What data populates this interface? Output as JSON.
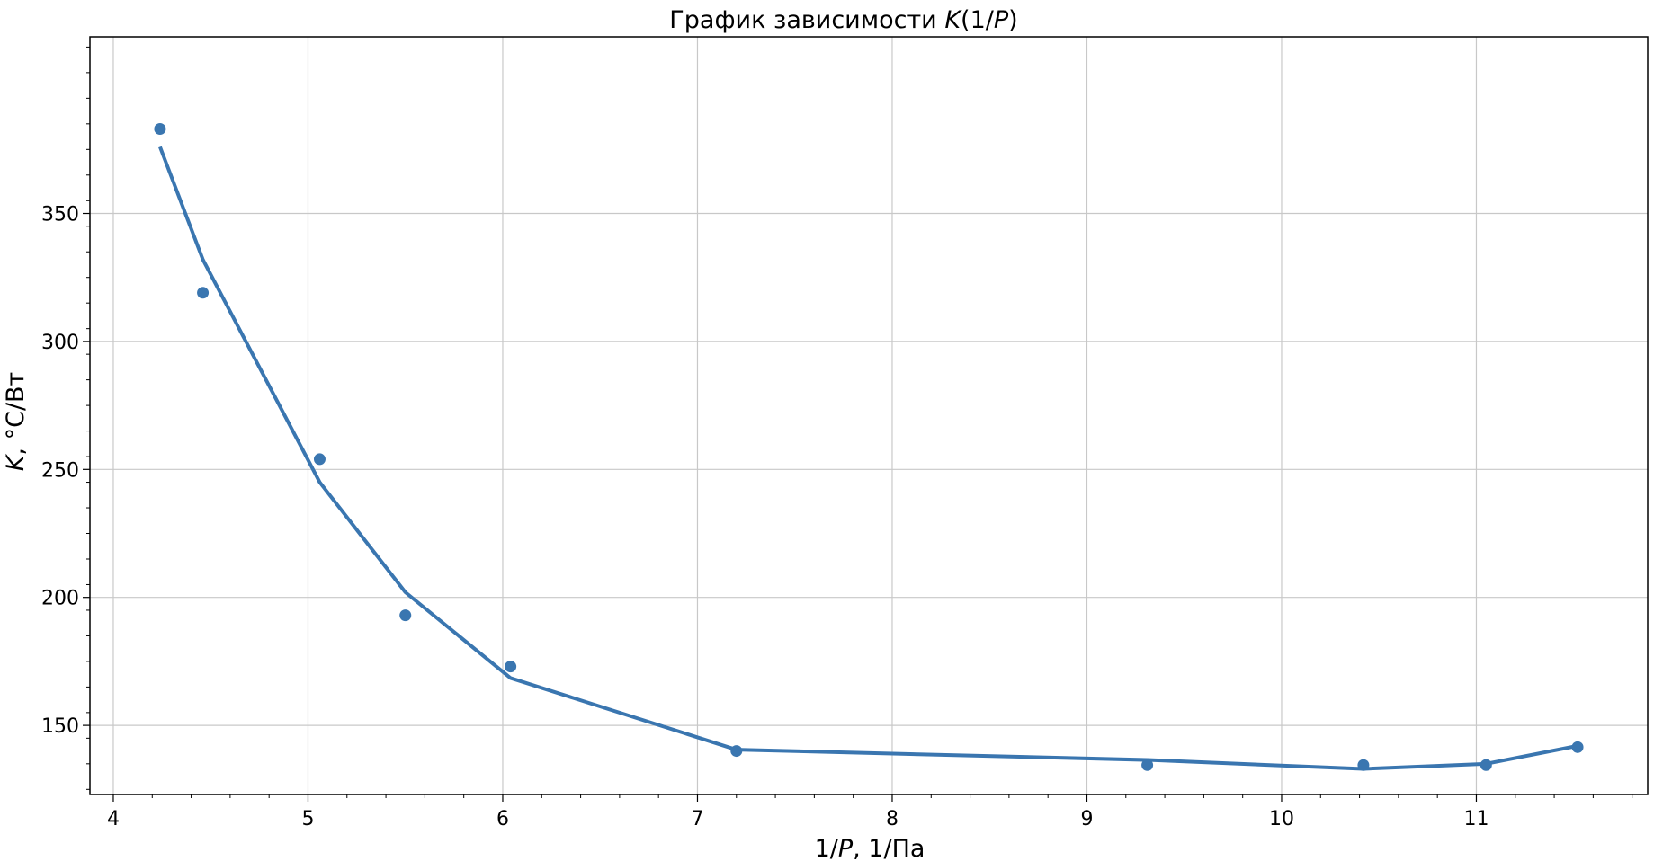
{
  "colors": {
    "series": "#3a76b0",
    "grid": "#c8c8c8",
    "axes": "#000000",
    "background": "#ffffff"
  },
  "chart_data": {
    "type": "scatter",
    "title_text": "График зависимости ",
    "title_math": "K",
    "title_suffix": "(1/",
    "title_math2": "P",
    "title_end": ")",
    "xlabel_prefix": "1/",
    "xlabel_math": "P",
    "xlabel_suffix": ",  1/Па",
    "ylabel_math": "K",
    "ylabel_suffix": ",  °C/Вт",
    "xlim": [
      3.88,
      11.88
    ],
    "ylim": [
      123,
      419
    ],
    "xticks": [
      "4",
      "5",
      "6",
      "7",
      "8",
      "9",
      "10",
      "11"
    ],
    "xtick_values": [
      4,
      5,
      6,
      7,
      8,
      9,
      10,
      11
    ],
    "yticks": [
      "150",
      "200",
      "250",
      "300",
      "350"
    ],
    "ytick_values": [
      150,
      200,
      250,
      300,
      350
    ],
    "minor_ticks": true,
    "grid": true,
    "series": [
      {
        "kind": "scatter",
        "x": [
          4.24,
          4.46,
          5.06,
          5.5,
          6.04,
          7.2,
          9.31,
          10.42,
          11.05,
          11.52
        ],
        "y": [
          383,
          319,
          254,
          193,
          173,
          140,
          134.5,
          134.5,
          134.5,
          141.5
        ]
      },
      {
        "kind": "line",
        "x": [
          4.24,
          4.46,
          5.06,
          5.5,
          6.04,
          7.2,
          9.31,
          10.42,
          11.05,
          11.52
        ],
        "y": [
          376,
          332,
          245,
          202,
          168.5,
          140.5,
          136.5,
          133,
          135,
          142
        ]
      }
    ]
  }
}
